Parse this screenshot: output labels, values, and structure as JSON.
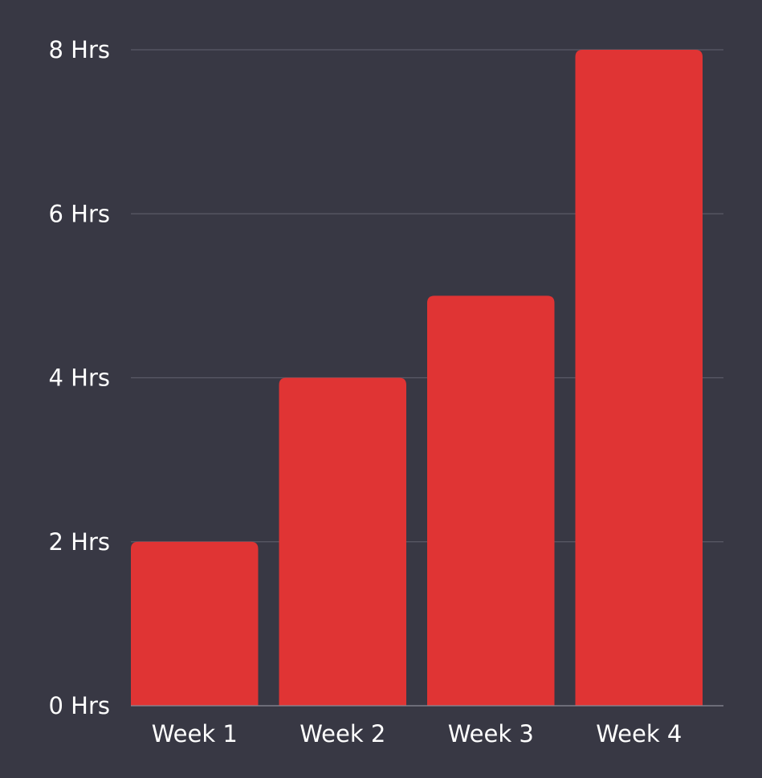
{
  "chart_data": {
    "type": "bar",
    "title": "",
    "xlabel": "",
    "ylabel": "",
    "categories": [
      "Week 1",
      "Week 2",
      "Week 3",
      "Week 4"
    ],
    "values": [
      2,
      4,
      5,
      8
    ],
    "ylim": [
      0,
      8
    ],
    "yticks": [
      0,
      2,
      4,
      6,
      8
    ],
    "ytick_labels": [
      "0 Hrs",
      "2 Hrs",
      "4 Hrs",
      "6 Hrs",
      "8 Hrs"
    ],
    "grid": true,
    "legend": "none",
    "colors": {
      "background": "#383844",
      "bar": "#e03434",
      "grid": "#5a5a67",
      "axis": "#8a8a96",
      "text": "#ffffff"
    }
  }
}
